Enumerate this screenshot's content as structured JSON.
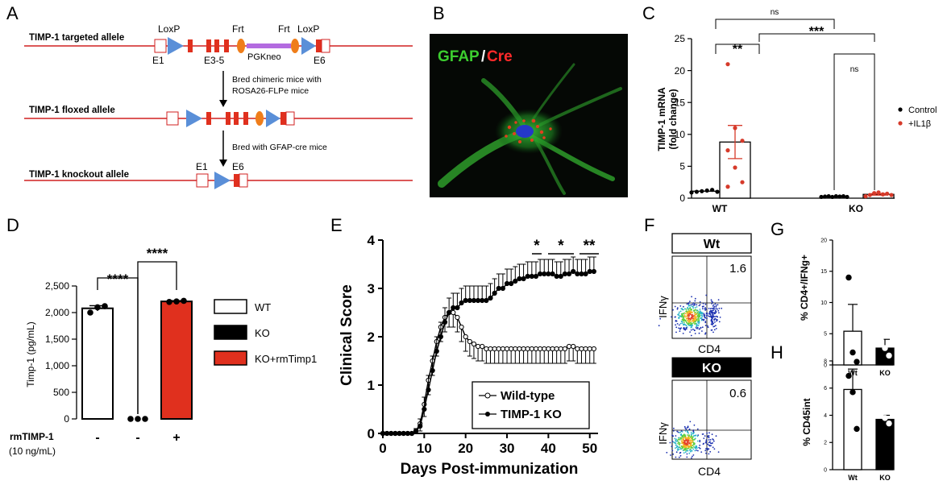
{
  "panels": {
    "A": {
      "letter": "A",
      "targeted_label": "TIMP-1 targeted allele",
      "floxed_label": "TIMP-1 floxed allele",
      "knockout_label": "TIMP-1 knockout allele",
      "loxp1": "LoxP",
      "frt1": "Frt",
      "frt2": "Frt",
      "loxp2": "LoxP",
      "e1": "E1",
      "e35": "E3-5",
      "pgkneo": "PGKneo",
      "e6": "E6",
      "step1_line1": "Bred chimeric mice with",
      "step1_line2": "ROSA26-FLPe mice",
      "step2": "Bred with GFAP-cre mice",
      "ko_e1": "E1",
      "ko_e6": "E6"
    },
    "B": {
      "letter": "B",
      "label_gfap": "GFAP",
      "label_slash": "/",
      "label_cre": "Cre"
    },
    "C": {
      "letter": "C",
      "legend_control": "Control",
      "legend_il1b": "+IL1β",
      "sig_top": "ns",
      "sig_wt": "**",
      "sig_mid": "***",
      "sig_ko": "ns"
    },
    "D": {
      "letter": "D",
      "sig1": "****",
      "sig2": "****",
      "rm_label": "rmTIMP-1",
      "rm_conc": "(10 ng/mL)",
      "rm_signs": [
        "-",
        "-",
        "+"
      ],
      "legend": [
        "WT",
        "KO",
        "KO+rmTimp1"
      ]
    },
    "E": {
      "letter": "E",
      "sig": [
        "*",
        "*",
        "**"
      ]
    },
    "F": {
      "letter": "F",
      "wt_title": "Wt",
      "ko_title": "KO",
      "wt_pct": "1.6",
      "ko_pct": "0.6",
      "ylabel": "IFNγ",
      "xlabel": "CD4"
    },
    "G": {
      "letter": "G"
    },
    "H": {
      "letter": "H"
    }
  },
  "colors": {
    "red": "#e0301e",
    "blue": "#5a8fd8",
    "orange": "#ef7d1a",
    "purple": "#9b4fd0",
    "green": "#35b52e",
    "red_dot": "#d63a2a"
  },
  "chart_data": [
    {
      "id": "C",
      "type": "bar",
      "ylabel": "TIMP-1 mRNA\n(fold change)",
      "categories": [
        "WT",
        "KO"
      ],
      "ylim": [
        0,
        25
      ],
      "yticks": [
        0,
        5,
        10,
        15,
        20,
        25
      ],
      "series": [
        {
          "name": "Control",
          "means": [
            1.1,
            0.25
          ],
          "sem": [
            0.1,
            0.05
          ],
          "points": [
            [
              0.9,
              1.0,
              1.1,
              1.2,
              1.3,
              1.0
            ],
            [
              0.2,
              0.25,
              0.3,
              0.2,
              0.3,
              0.25,
              0.3,
              0.2
            ]
          ]
        },
        {
          "name": "+IL1β",
          "means": [
            8.8,
            0.6
          ],
          "sem": [
            2.6,
            0.12
          ],
          "points": [
            [
              21.0,
              11.0,
              9.0,
              7.5,
              4.8,
              2.5,
              1.8
            ],
            [
              0.3,
              0.5,
              0.8,
              0.9,
              0.6,
              0.7,
              0.5
            ]
          ]
        }
      ]
    },
    {
      "id": "D",
      "type": "bar",
      "ylabel": "Timp-1 (pg/mL)",
      "categories": [
        "WT",
        "KO",
        "KO+rmTimp1"
      ],
      "ylim": [
        0,
        2500
      ],
      "yticks": [
        0,
        500,
        1000,
        1500,
        2000,
        2500
      ],
      "ytick_labels": [
        "0",
        "500",
        "1,000",
        "1,500",
        "2,000",
        "2,500"
      ],
      "values": [
        2080,
        0,
        2210
      ],
      "sem": [
        50,
        0,
        15
      ],
      "points": [
        [
          2000,
          2100,
          2120
        ],
        [
          0,
          0,
          0
        ],
        [
          2200,
          2210,
          2220
        ]
      ]
    },
    {
      "id": "E",
      "type": "line",
      "xlabel": "Days Post-immunization",
      "ylabel": "Clinical Score",
      "xlim": [
        0,
        52
      ],
      "ylim": [
        0,
        4
      ],
      "xticks": [
        0,
        10,
        20,
        30,
        40,
        50
      ],
      "yticks": [
        0,
        1,
        2,
        3,
        4
      ],
      "series": [
        {
          "name": "Wild-type",
          "x": [
            0,
            1,
            2,
            3,
            4,
            5,
            6,
            7,
            8,
            9,
            10,
            11,
            12,
            13,
            14,
            15,
            16,
            17,
            18,
            19,
            20,
            21,
            22,
            23,
            24,
            25,
            26,
            27,
            28,
            29,
            30,
            31,
            32,
            33,
            34,
            35,
            36,
            37,
            38,
            39,
            40,
            41,
            42,
            43,
            44,
            45,
            46,
            47,
            48,
            49,
            50,
            51
          ],
          "y": [
            0,
            0,
            0,
            0,
            0,
            0,
            0,
            0,
            0.05,
            0.2,
            0.6,
            1.1,
            1.5,
            1.9,
            2.2,
            2.4,
            2.5,
            2.5,
            2.4,
            2.2,
            2.0,
            1.9,
            1.85,
            1.8,
            1.8,
            1.75,
            1.75,
            1.75,
            1.75,
            1.75,
            1.75,
            1.75,
            1.75,
            1.75,
            1.75,
            1.75,
            1.75,
            1.75,
            1.75,
            1.75,
            1.75,
            1.75,
            1.75,
            1.75,
            1.75,
            1.8,
            1.8,
            1.75,
            1.75,
            1.75,
            1.75,
            1.75
          ],
          "err": [
            0,
            0,
            0,
            0,
            0,
            0,
            0,
            0,
            0.05,
            0.15,
            0.25,
            0.3,
            0.3,
            0.3,
            0.3,
            0.3,
            0.3,
            0.3,
            0.3,
            0.3,
            0.3,
            0.3,
            0.3,
            0.3,
            0.3,
            0.3,
            0.3,
            0.3,
            0.3,
            0.3,
            0.3,
            0.3,
            0.3,
            0.3,
            0.3,
            0.3,
            0.3,
            0.3,
            0.3,
            0.3,
            0.3,
            0.3,
            0.3,
            0.3,
            0.3,
            0.3,
            0.3,
            0.3,
            0.3,
            0.3,
            0.3,
            0.3
          ]
        },
        {
          "name": "TIMP-1 KO",
          "x": [
            0,
            1,
            2,
            3,
            4,
            5,
            6,
            7,
            8,
            9,
            10,
            11,
            12,
            13,
            14,
            15,
            16,
            17,
            18,
            19,
            20,
            21,
            22,
            23,
            24,
            25,
            26,
            27,
            28,
            29,
            30,
            31,
            32,
            33,
            34,
            35,
            36,
            37,
            38,
            39,
            40,
            41,
            42,
            43,
            44,
            45,
            46,
            47,
            48,
            49,
            50,
            51
          ],
          "y": [
            0,
            0,
            0,
            0,
            0,
            0,
            0,
            0,
            0.05,
            0.15,
            0.5,
            0.9,
            1.3,
            1.7,
            2.0,
            2.3,
            2.5,
            2.6,
            2.6,
            2.7,
            2.75,
            2.75,
            2.75,
            2.75,
            2.75,
            2.75,
            2.8,
            2.9,
            3.0,
            3.0,
            3.1,
            3.1,
            3.15,
            3.2,
            3.2,
            3.25,
            3.25,
            3.25,
            3.3,
            3.3,
            3.3,
            3.3,
            3.25,
            3.25,
            3.3,
            3.3,
            3.35,
            3.3,
            3.3,
            3.3,
            3.35,
            3.35
          ],
          "err": [
            0,
            0,
            0,
            0,
            0,
            0,
            0,
            0,
            0.05,
            0.15,
            0.25,
            0.3,
            0.3,
            0.3,
            0.3,
            0.3,
            0.3,
            0.3,
            0.3,
            0.3,
            0.3,
            0.3,
            0.3,
            0.3,
            0.3,
            0.3,
            0.3,
            0.3,
            0.3,
            0.3,
            0.3,
            0.3,
            0.3,
            0.3,
            0.3,
            0.3,
            0.3,
            0.3,
            0.3,
            0.3,
            0.3,
            0.3,
            0.3,
            0.3,
            0.3,
            0.3,
            0.3,
            0.3,
            0.3,
            0.3,
            0.3,
            0.3
          ]
        }
      ]
    },
    {
      "id": "G",
      "type": "bar",
      "ylabel": "% CD4+/IFNg+",
      "categories": [
        "Wt",
        "KO"
      ],
      "ylim": [
        0,
        20
      ],
      "yticks": [
        0,
        5,
        10,
        15,
        20
      ],
      "values": [
        5.4,
        2.7
      ],
      "sem": [
        4.3,
        1.4
      ],
      "points": [
        [
          14.0,
          2.0,
          0.5
        ],
        [
          4.0,
          2.7,
          1.5
        ]
      ]
    },
    {
      "id": "H",
      "type": "bar",
      "ylabel": "% CD45int",
      "categories": [
        "Wt",
        "KO"
      ],
      "ylim": [
        0,
        8
      ],
      "yticks": [
        0,
        2,
        4,
        6,
        8
      ],
      "values": [
        5.9,
        3.7
      ],
      "sem": [
        1.5,
        0.3
      ],
      "points": [
        [
          6.9,
          5.7,
          3.0
        ],
        [
          4.1,
          3.8,
          3.4
        ]
      ]
    }
  ]
}
